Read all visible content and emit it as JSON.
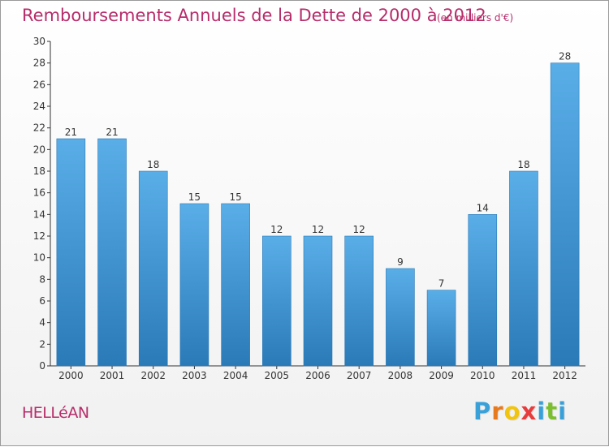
{
  "header": {
    "title": "Remboursements Annuels de la Dette de 2000 à 2012",
    "unit": "(en milliers d'€)"
  },
  "footer": {
    "town": "HELLéAN",
    "logo_letters": [
      "P",
      "r",
      "o",
      "x",
      "i",
      "t",
      "i"
    ],
    "logo_colors": [
      "#3aa0d8",
      "#e87a1e",
      "#f1c40f",
      "#e83c3c",
      "#3aa0d8",
      "#7bbf2e",
      "#3aa0d8"
    ]
  },
  "chart_data": {
    "type": "bar",
    "categories": [
      "2000",
      "2001",
      "2002",
      "2003",
      "2004",
      "2005",
      "2006",
      "2007",
      "2008",
      "2009",
      "2010",
      "2011",
      "2012"
    ],
    "values": [
      21,
      21,
      18,
      15,
      15,
      12,
      12,
      12,
      9,
      7,
      14,
      18,
      28
    ],
    "title": "Remboursements Annuels de la Dette de 2000 à 2012",
    "subtitle": "(en milliers d'€)",
    "ylim": [
      0,
      30
    ],
    "yticks": [
      0,
      2,
      4,
      6,
      8,
      10,
      12,
      14,
      16,
      18,
      20,
      22,
      24,
      26,
      28,
      30
    ],
    "grid": false,
    "bar_color": "#4c9fdc",
    "bar_color_dark": "#2a7fc0"
  }
}
